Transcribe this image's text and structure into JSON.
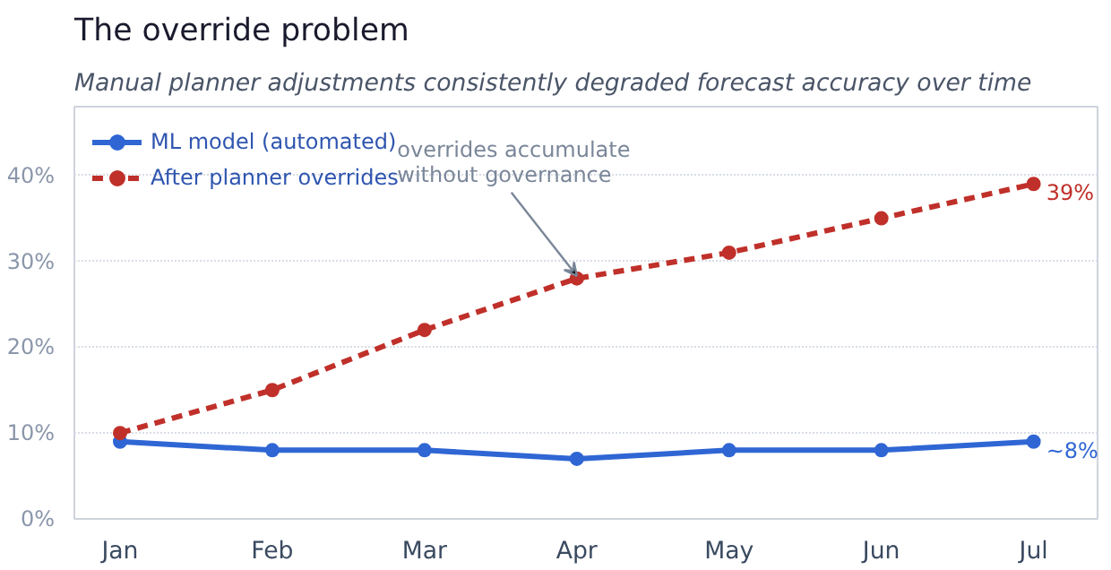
{
  "chart_data": {
    "type": "line",
    "title": "The override problem",
    "subtitle": "Manual planner adjustments consistently degraded forecast accuracy over time",
    "categories": [
      "Jan",
      "Feb",
      "Mar",
      "Apr",
      "May",
      "Jun",
      "Jul"
    ],
    "series": [
      {
        "name": "ML model (automated)",
        "color": "#2f66d4",
        "values": [
          9,
          8,
          8,
          7,
          8,
          8,
          9
        ],
        "line_style": "solid"
      },
      {
        "name": "After planner overrides",
        "color": "#c0302a",
        "values": [
          10,
          15,
          22,
          28,
          31,
          35,
          39
        ],
        "line_style": "dashed"
      }
    ],
    "ylim": [
      0,
      48
    ],
    "yticks": [
      {
        "value": 0,
        "label": "0%"
      },
      {
        "value": 10,
        "label": "10%"
      },
      {
        "value": 20,
        "label": "20%"
      },
      {
        "value": 30,
        "label": "30%"
      },
      {
        "value": 40,
        "label": "40%"
      }
    ],
    "annotations": [
      {
        "text": "overrides accumulate\nwithout governance",
        "x": "Apr",
        "y": 28
      },
      {
        "text": "39%",
        "x": "Jul",
        "y": 39
      },
      {
        "text": "~8%",
        "x": "Jul",
        "y": 9
      }
    ],
    "grid": "y",
    "legend": "top left",
    "marker": "circle"
  }
}
